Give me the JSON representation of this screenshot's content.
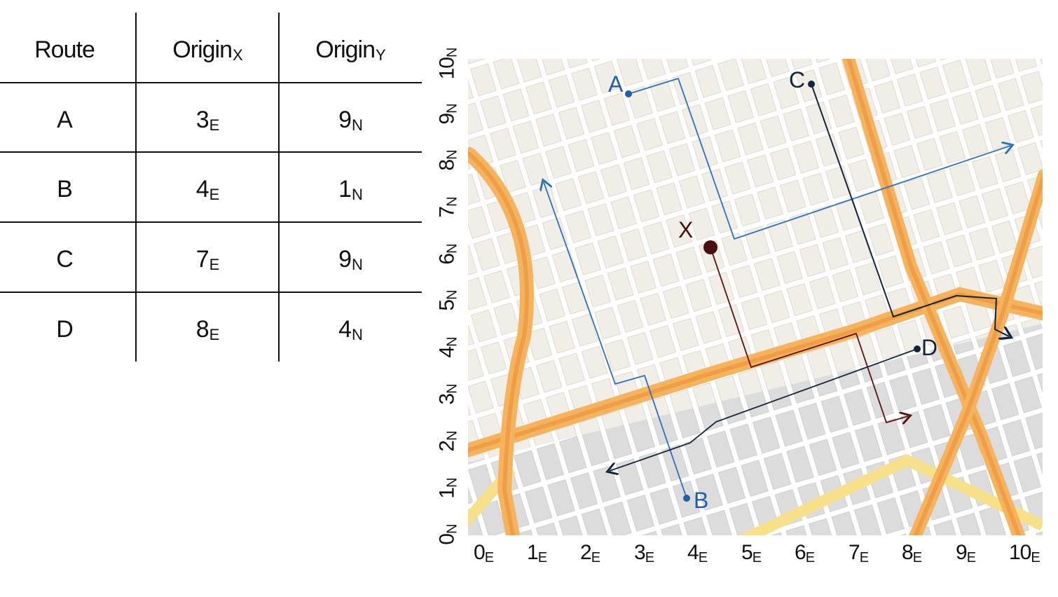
{
  "table": {
    "headers": [
      {
        "main": "Route",
        "sub": ""
      },
      {
        "main": "Origin",
        "sub": "X"
      },
      {
        "main": "Origin",
        "sub": "Y"
      }
    ],
    "rows": [
      {
        "route": "A",
        "x_main": "3",
        "x_sub": "E",
        "y_main": "9",
        "y_sub": "N"
      },
      {
        "route": "B",
        "x_main": "4",
        "x_sub": "E",
        "y_main": "1",
        "y_sub": "N"
      },
      {
        "route": "C",
        "x_main": "7",
        "x_sub": "E",
        "y_main": "9",
        "y_sub": "N"
      },
      {
        "route": "D",
        "x_main": "8",
        "x_sub": "E",
        "y_main": "4",
        "y_sub": "N"
      }
    ]
  },
  "map": {
    "x_ticks": [
      {
        "main": "0",
        "sub": "E"
      },
      {
        "main": "1",
        "sub": "E"
      },
      {
        "main": "2",
        "sub": "E"
      },
      {
        "main": "3",
        "sub": "E"
      },
      {
        "main": "4",
        "sub": "E"
      },
      {
        "main": "5",
        "sub": "E"
      },
      {
        "main": "6",
        "sub": "E"
      },
      {
        "main": "7",
        "sub": "E"
      },
      {
        "main": "8",
        "sub": "E"
      },
      {
        "main": "9",
        "sub": "E"
      },
      {
        "main": "10",
        "sub": "E"
      }
    ],
    "y_ticks": [
      {
        "main": "0",
        "sub": "N"
      },
      {
        "main": "1",
        "sub": "N"
      },
      {
        "main": "2",
        "sub": "N"
      },
      {
        "main": "3",
        "sub": "N"
      },
      {
        "main": "4",
        "sub": "N"
      },
      {
        "main": "5",
        "sub": "N"
      },
      {
        "main": "6",
        "sub": "N"
      },
      {
        "main": "7",
        "sub": "N"
      },
      {
        "main": "8",
        "sub": "N"
      },
      {
        "main": "9",
        "sub": "N"
      },
      {
        "main": "10",
        "sub": "N"
      }
    ],
    "markers": {
      "A": {
        "label": "A",
        "color": "#1f5fa8"
      },
      "B": {
        "label": "B",
        "color": "#1f5fa8"
      },
      "C": {
        "label": "C",
        "color": "#10243a"
      },
      "D": {
        "label": "D",
        "color": "#10243a"
      },
      "X": {
        "label": "X",
        "color": "#4a0f0f"
      }
    },
    "colors": {
      "route_a": "#2a6fc0",
      "route_b": "#2a6fc0",
      "route_c": "#10243a",
      "route_d": "#10243a",
      "route_x": "#5a1010",
      "highway": "#f2a24a",
      "highway_core": "#e88a2e",
      "minor_highway": "#f7e08a",
      "block_light": "#f1eee8",
      "block_gray": "#dcdcdc",
      "street": "#ffffff"
    }
  }
}
